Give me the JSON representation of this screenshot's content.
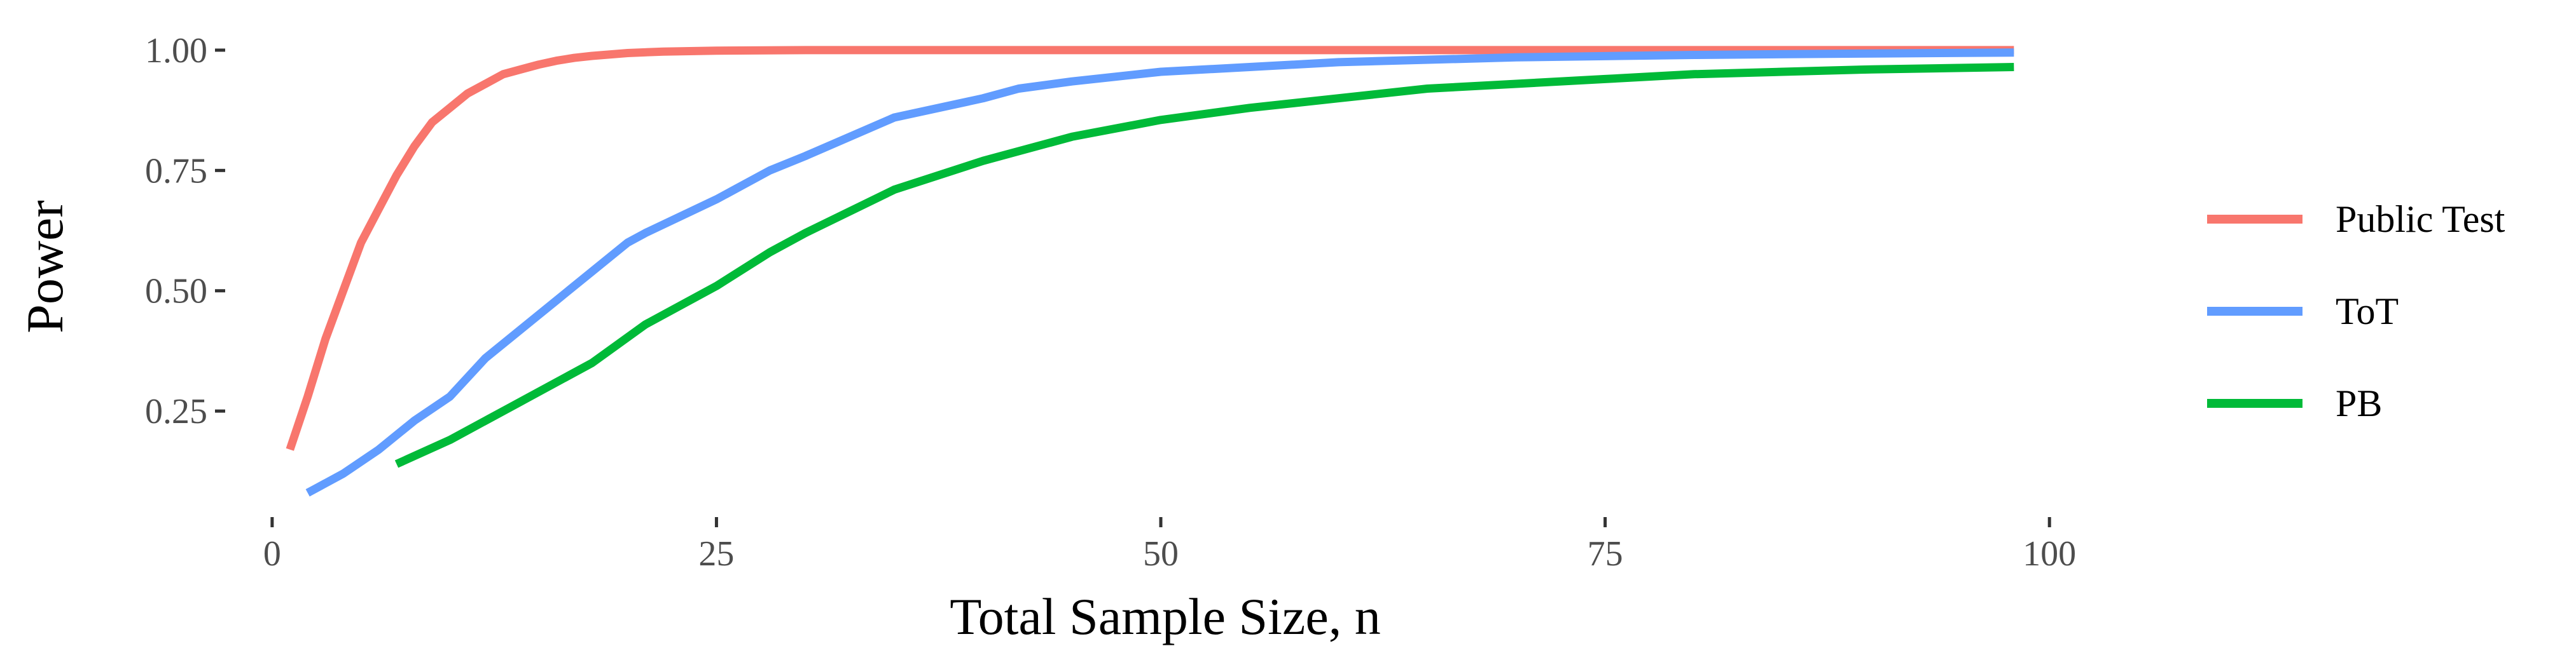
{
  "chart_data": {
    "type": "line",
    "title": "",
    "xlabel": "Total Sample Size, n",
    "ylabel": "Power",
    "xlim": [
      -2.5,
      103
    ],
    "ylim": [
      0.035,
      1.025
    ],
    "x_ticks": [
      0,
      25,
      50,
      75,
      100
    ],
    "x_tick_labels": [
      "0",
      "25",
      "50",
      "75",
      "100"
    ],
    "y_ticks": [
      0.25,
      0.5,
      0.75,
      1.0
    ],
    "y_tick_labels": [
      "0.25",
      "0.50",
      "0.75",
      "1.00"
    ],
    "grid": false,
    "legend_position": "right",
    "series": [
      {
        "name": "Public Test",
        "color": "#F8766D",
        "points": [
          [
            1,
            0.17
          ],
          [
            2,
            0.28
          ],
          [
            3,
            0.4
          ],
          [
            4,
            0.5
          ],
          [
            5,
            0.6
          ],
          [
            6,
            0.67
          ],
          [
            7,
            0.74
          ],
          [
            8,
            0.8
          ],
          [
            9,
            0.85
          ],
          [
            10,
            0.88
          ],
          [
            11,
            0.91
          ],
          [
            12,
            0.93
          ],
          [
            13,
            0.95
          ],
          [
            14,
            0.96
          ],
          [
            15,
            0.97
          ],
          [
            16,
            0.978
          ],
          [
            17,
            0.984
          ],
          [
            18,
            0.988
          ],
          [
            20,
            0.994
          ],
          [
            22,
            0.997
          ],
          [
            25,
            0.999
          ],
          [
            30,
            1.0
          ],
          [
            40,
            1.0
          ],
          [
            60,
            1.0
          ],
          [
            80,
            1.0
          ],
          [
            98,
            1.0
          ]
        ]
      },
      {
        "name": "ToT",
        "color": "#619CFF",
        "points": [
          [
            2,
            0.08
          ],
          [
            4,
            0.12
          ],
          [
            6,
            0.17
          ],
          [
            8,
            0.23
          ],
          [
            10,
            0.28
          ],
          [
            12,
            0.36
          ],
          [
            14,
            0.42
          ],
          [
            16,
            0.48
          ],
          [
            18,
            0.54
          ],
          [
            20,
            0.6
          ],
          [
            21,
            0.62
          ],
          [
            25,
            0.69
          ],
          [
            28,
            0.75
          ],
          [
            30,
            0.78
          ],
          [
            35,
            0.86
          ],
          [
            40,
            0.9
          ],
          [
            42,
            0.92
          ],
          [
            45,
            0.935
          ],
          [
            50,
            0.955
          ],
          [
            55,
            0.965
          ],
          [
            60,
            0.975
          ],
          [
            70,
            0.985
          ],
          [
            80,
            0.99
          ],
          [
            90,
            0.993
          ],
          [
            98,
            0.995
          ]
        ]
      },
      {
        "name": "PB",
        "color": "#00BA38",
        "points": [
          [
            7,
            0.14
          ],
          [
            10,
            0.19
          ],
          [
            14,
            0.27
          ],
          [
            18,
            0.35
          ],
          [
            21,
            0.43
          ],
          [
            25,
            0.51
          ],
          [
            28,
            0.58
          ],
          [
            30,
            0.62
          ],
          [
            35,
            0.71
          ],
          [
            40,
            0.77
          ],
          [
            42,
            0.79
          ],
          [
            45,
            0.82
          ],
          [
            50,
            0.855
          ],
          [
            55,
            0.88
          ],
          [
            60,
            0.9
          ],
          [
            65,
            0.92
          ],
          [
            70,
            0.93
          ],
          [
            75,
            0.94
          ],
          [
            80,
            0.95
          ],
          [
            85,
            0.955
          ],
          [
            90,
            0.96
          ],
          [
            98,
            0.965
          ]
        ]
      }
    ]
  }
}
